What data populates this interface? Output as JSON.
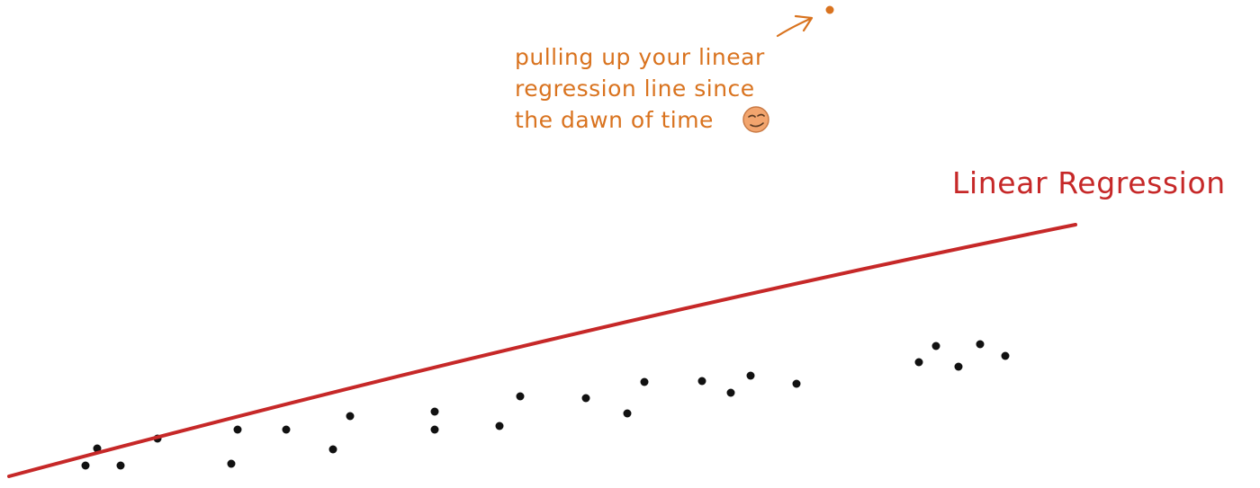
{
  "diagram": {
    "annotation": {
      "lines": [
        "pulling up your linear",
        "regression line since",
        "the dawn of time"
      ],
      "emoji": "😏",
      "color": "#d9731f"
    },
    "regression_label": "Linear Regression",
    "regression_color": "#c62828",
    "point_color": "#111111",
    "outlier_color": "#d9731f",
    "icons": {
      "arrow": "arrow-icon",
      "emoji": "smirk-emoji-icon"
    }
  }
}
